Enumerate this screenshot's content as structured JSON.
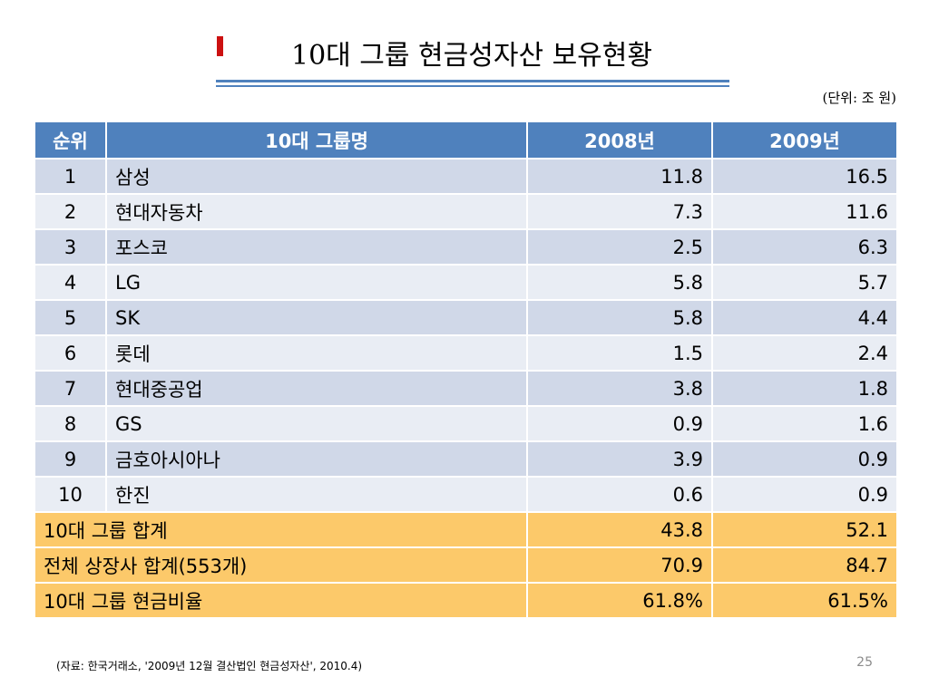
{
  "title": "10대 그룹 현금성자산 보유현황",
  "unit": "(단위: 조 원)",
  "table": {
    "headers": [
      "순위",
      "10대 그룹명",
      "2008년",
      "2009년"
    ],
    "rows": [
      {
        "rank": "1",
        "name": "삼성",
        "y2008": "11.8",
        "y2009": "16.5"
      },
      {
        "rank": "2",
        "name": "현대자동차",
        "y2008": "7.3",
        "y2009": "11.6"
      },
      {
        "rank": "3",
        "name": "포스코",
        "y2008": "2.5",
        "y2009": "6.3"
      },
      {
        "rank": "4",
        "name": "LG",
        "y2008": "5.8",
        "y2009": "5.7"
      },
      {
        "rank": "5",
        "name": "SK",
        "y2008": "5.8",
        "y2009": "4.4"
      },
      {
        "rank": "6",
        "name": "롯데",
        "y2008": "1.5",
        "y2009": "2.4"
      },
      {
        "rank": "7",
        "name": "현대중공업",
        "y2008": "3.8",
        "y2009": "1.8"
      },
      {
        "rank": "8",
        "name": "GS",
        "y2008": "0.9",
        "y2009": "1.6"
      },
      {
        "rank": "9",
        "name": "금호아시아나",
        "y2008": "3.9",
        "y2009": "0.9"
      },
      {
        "rank": "10",
        "name": "한진",
        "y2008": "0.6",
        "y2009": "0.9"
      }
    ],
    "summary": [
      {
        "label": "10대 그룹 합계",
        "y2008": "43.8",
        "y2009": "52.1"
      },
      {
        "label": "전체 상장사 합계(553개)",
        "y2008": "70.9",
        "y2009": "84.7"
      },
      {
        "label": "10대 그룹 현금비율",
        "y2008": "61.8%",
        "y2009": "61.5%"
      }
    ]
  },
  "source": "(자료: 한국거래소, '2009년 12월 결산법인 현금성자산', 2010.4)",
  "page_number": "25",
  "colors": {
    "header": "#4f81bd",
    "row_band_dark": "#d0d8e8",
    "row_band_light": "#e9edf4",
    "summary": "#fcc96a",
    "title_mark": "#cc1111"
  }
}
